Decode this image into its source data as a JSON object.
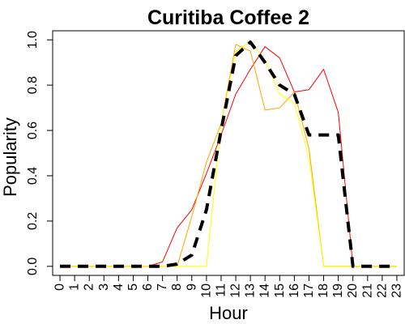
{
  "chart_data": {
    "type": "line",
    "title": "Curitiba Coffee 2",
    "xlabel": "Hour",
    "ylabel": "Popularity",
    "xlim": [
      -0.5,
      23.5
    ],
    "ylim": [
      -0.04,
      1.04
    ],
    "x_ticks": [
      "0",
      "1",
      "2",
      "3",
      "4",
      "5",
      "6",
      "7",
      "8",
      "9",
      "10",
      "11",
      "12",
      "13",
      "14",
      "15",
      "16",
      "17",
      "18",
      "19",
      "20",
      "21",
      "22",
      "23"
    ],
    "y_ticks": [
      "0.0",
      "0.2",
      "0.4",
      "0.6",
      "0.8",
      "1.0"
    ],
    "grid": false,
    "legend": "none",
    "x": [
      0,
      1,
      2,
      3,
      4,
      5,
      6,
      7,
      8,
      9,
      10,
      11,
      12,
      13,
      14,
      15,
      16,
      17,
      18,
      19,
      20,
      21,
      22,
      23
    ],
    "series": [
      {
        "color": "#ff0000",
        "dash": "solid",
        "width": 1,
        "values": [
          0,
          0,
          0,
          0,
          0,
          0,
          0,
          0.02,
          0.17,
          0.25,
          0.41,
          0.58,
          0.76,
          0.87,
          0.97,
          0.92,
          0.77,
          0.78,
          0.87,
          0.68,
          0,
          0,
          0,
          0
        ]
      },
      {
        "color": "#ffa500",
        "dash": "solid",
        "width": 1,
        "values": [
          0,
          0,
          0,
          0,
          0,
          0,
          0,
          0,
          0,
          0.22,
          0.46,
          0.63,
          0.98,
          0.95,
          0.69,
          0.7,
          0.77,
          0.52,
          0,
          0,
          0,
          0,
          0,
          0
        ]
      },
      {
        "color": "#ffff00",
        "dash": "solid",
        "width": 1,
        "values": [
          0,
          0,
          0,
          0,
          0,
          0,
          0,
          0,
          0,
          0,
          0,
          0.63,
          0.95,
          0.99,
          0.91,
          0.76,
          0.72,
          0.48,
          0,
          0,
          0,
          0,
          0,
          0
        ]
      },
      {
        "color": "#000000",
        "dash": "dashed",
        "width": 4,
        "values": [
          0,
          0,
          0,
          0,
          0,
          0,
          0,
          0,
          0.01,
          0.05,
          0.25,
          0.6,
          0.93,
          0.99,
          0.9,
          0.8,
          0.76,
          0.58,
          0.58,
          0.58,
          0,
          0,
          0,
          0
        ]
      }
    ]
  }
}
